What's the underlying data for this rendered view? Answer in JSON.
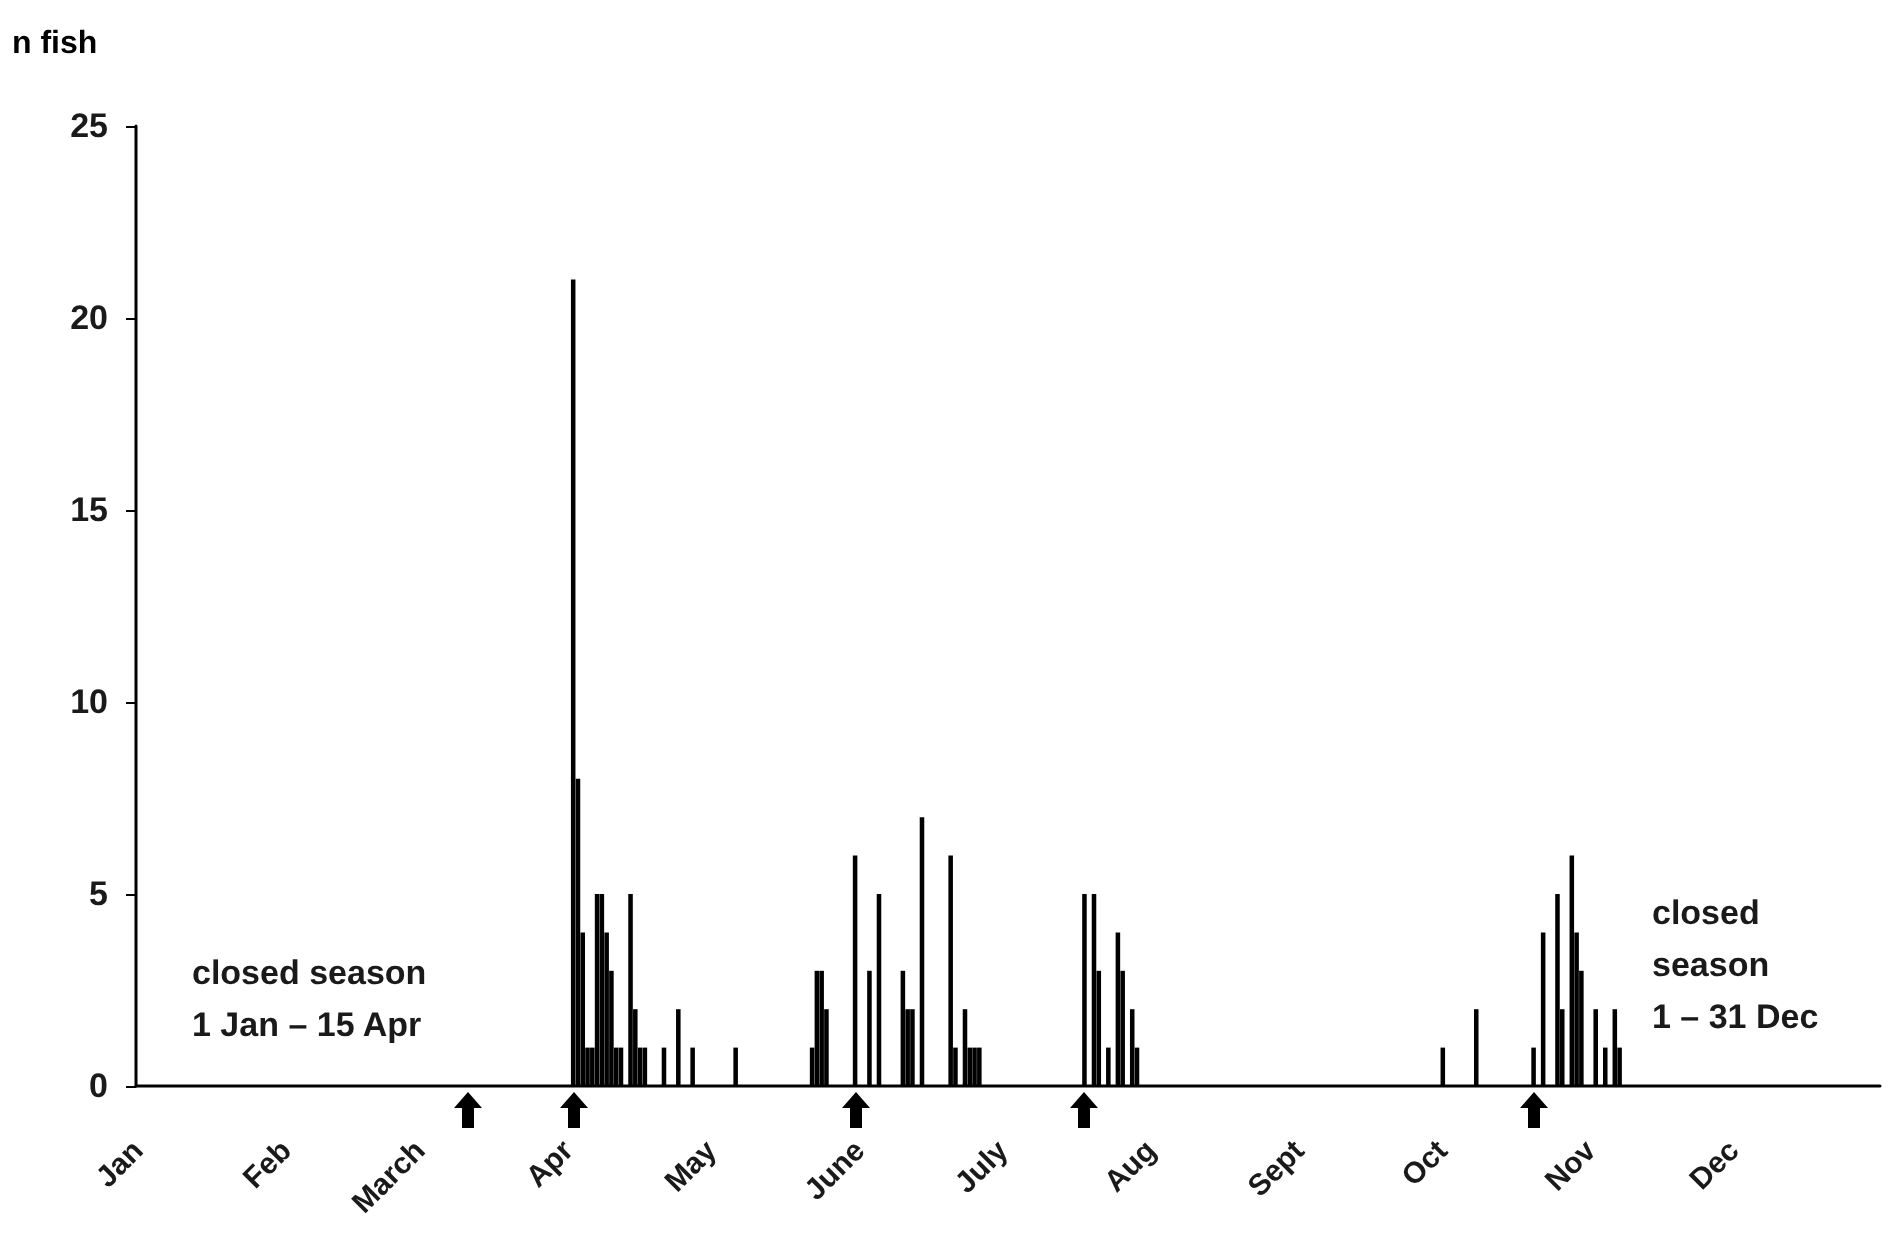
{
  "chart_data": {
    "type": "bar",
    "ylabel": "n fish",
    "color": "#000000",
    "categories": [
      "Jan",
      null,
      null,
      null,
      null,
      null,
      null,
      null,
      null,
      null,
      null,
      null,
      null,
      null,
      null,
      null,
      null,
      null,
      null,
      null,
      null,
      null,
      null,
      null,
      null,
      null,
      null,
      null,
      null,
      null,
      null,
      "Feb",
      null,
      null,
      null,
      null,
      null,
      null,
      null,
      null,
      null,
      null,
      null,
      null,
      null,
      null,
      null,
      null,
      null,
      null,
      null,
      null,
      null,
      null,
      null,
      null,
      null,
      null,
      null,
      "March",
      null,
      null,
      null,
      null,
      null,
      null,
      null,
      null,
      null,
      null,
      null,
      null,
      null,
      null,
      null,
      null,
      null,
      null,
      null,
      null,
      null,
      null,
      null,
      null,
      null,
      null,
      null,
      null,
      null,
      null,
      "Apr",
      null,
      null,
      null,
      null,
      null,
      null,
      null,
      null,
      null,
      null,
      null,
      null,
      null,
      null,
      null,
      null,
      null,
      null,
      null,
      null,
      null,
      null,
      null,
      null,
      null,
      null,
      null,
      null,
      null,
      "May",
      null,
      null,
      null,
      null,
      null,
      null,
      null,
      null,
      null,
      null,
      null,
      null,
      null,
      null,
      null,
      null,
      null,
      null,
      null,
      null,
      null,
      null,
      null,
      null,
      null,
      null,
      null,
      null,
      null,
      null,
      "June",
      null,
      null,
      null,
      null,
      null,
      null,
      null,
      null,
      null,
      null,
      null,
      null,
      null,
      null,
      null,
      null,
      null,
      null,
      null,
      null,
      null,
      null,
      null,
      null,
      null,
      null,
      null,
      null,
      null,
      "July",
      null,
      null,
      null,
      null,
      null,
      null,
      null,
      null,
      null,
      null,
      null,
      null,
      null,
      null,
      null,
      null,
      null,
      null,
      null,
      null,
      null,
      null,
      null,
      null,
      null,
      null,
      null,
      null,
      null,
      null,
      "Aug",
      null,
      null,
      null,
      null,
      null,
      null,
      null,
      null,
      null,
      null,
      null,
      null,
      null,
      null,
      null,
      null,
      null,
      null,
      null,
      null,
      null,
      null,
      null,
      null,
      null,
      null,
      null,
      null,
      null,
      null,
      "Sept",
      null,
      null,
      null,
      null,
      null,
      null,
      null,
      null,
      null,
      null,
      null,
      null,
      null,
      null,
      null,
      null,
      null,
      null,
      null,
      null,
      null,
      null,
      null,
      null,
      null,
      null,
      null,
      null,
      null,
      "Oct",
      null,
      null,
      null,
      null,
      null,
      null,
      null,
      null,
      null,
      null,
      null,
      null,
      null,
      null,
      null,
      null,
      null,
      null,
      null,
      null,
      null,
      null,
      null,
      null,
      null,
      null,
      null,
      null,
      null,
      null,
      "Nov",
      null,
      null,
      null,
      null,
      null,
      null,
      null,
      null,
      null,
      null,
      null,
      null,
      null,
      null,
      null,
      null,
      null,
      null,
      null,
      null,
      null,
      null,
      null,
      null,
      null,
      null,
      null,
      null,
      null,
      "Dec",
      null,
      null,
      null,
      null,
      null,
      null,
      null,
      null,
      null,
      null,
      null,
      null,
      null,
      null,
      null,
      null,
      null,
      null,
      null,
      null,
      null,
      null,
      null,
      null,
      null,
      null,
      null,
      null,
      null,
      null
    ],
    "values": [
      0,
      0,
      0,
      0,
      0,
      0,
      0,
      0,
      0,
      0,
      0,
      0,
      0,
      0,
      0,
      0,
      0,
      0,
      0,
      0,
      0,
      0,
      0,
      0,
      0,
      0,
      0,
      0,
      0,
      0,
      0,
      0,
      0,
      0,
      0,
      0,
      0,
      0,
      0,
      0,
      0,
      0,
      0,
      0,
      0,
      0,
      0,
      0,
      0,
      0,
      0,
      0,
      0,
      0,
      0,
      0,
      0,
      0,
      0,
      0,
      0,
      0,
      0,
      0,
      0,
      0,
      0,
      0,
      0,
      0,
      0,
      0,
      0,
      0,
      0,
      0,
      0,
      0,
      0,
      0,
      0,
      0,
      0,
      0,
      0,
      0,
      0,
      0,
      0,
      0,
      0,
      21,
      8,
      4,
      1,
      1,
      5,
      5,
      4,
      3,
      1,
      1,
      0,
      5,
      2,
      1,
      1,
      0,
      0,
      0,
      1,
      0,
      0,
      2,
      0,
      0,
      1,
      0,
      0,
      0,
      0,
      0,
      0,
      0,
      0,
      1,
      0,
      0,
      0,
      0,
      0,
      0,
      0,
      0,
      0,
      0,
      0,
      0,
      0,
      0,
      0,
      1,
      3,
      3,
      2,
      0,
      0,
      0,
      0,
      0,
      6,
      0,
      0,
      3,
      0,
      5,
      0,
      0,
      0,
      0,
      3,
      2,
      2,
      0,
      7,
      0,
      0,
      0,
      0,
      0,
      6,
      1,
      0,
      2,
      1,
      1,
      1,
      0,
      0,
      0,
      0,
      0,
      0,
      0,
      0,
      0,
      0,
      0,
      0,
      0,
      0,
      0,
      0,
      0,
      0,
      0,
      0,
      0,
      5,
      0,
      5,
      3,
      0,
      1,
      0,
      4,
      3,
      0,
      2,
      1,
      0,
      0,
      0,
      0,
      0,
      0,
      0,
      0,
      0,
      0,
      0,
      0,
      0,
      0,
      0,
      0,
      0,
      0,
      0,
      0,
      0,
      0,
      0,
      0,
      0,
      0,
      0,
      0,
      0,
      0,
      0,
      0,
      0,
      0,
      0,
      0,
      0,
      0,
      0,
      0,
      0,
      0,
      0,
      0,
      0,
      0,
      0,
      0,
      0,
      0,
      0,
      0,
      0,
      0,
      0,
      0,
      0,
      0,
      0,
      0,
      0,
      0,
      0,
      1,
      0,
      0,
      0,
      0,
      0,
      0,
      2,
      0,
      0,
      0,
      0,
      0,
      0,
      0,
      0,
      0,
      0,
      0,
      1,
      0,
      4,
      0,
      0,
      5,
      2,
      0,
      6,
      4,
      3,
      0,
      0,
      2,
      0,
      1,
      0,
      2,
      1,
      0,
      0,
      0,
      0,
      0,
      0,
      0,
      0,
      0,
      0,
      0,
      0,
      0,
      0,
      0,
      0,
      0,
      0,
      0,
      0,
      0,
      0,
      0,
      0,
      0,
      0,
      0,
      0,
      0,
      0,
      0,
      0,
      0,
      0,
      0,
      0,
      0,
      0,
      0,
      0,
      0,
      0,
      0,
      0,
      0,
      0,
      0,
      0,
      0,
      0,
      0,
      0,
      0,
      0
    ],
    "ylim": [
      0,
      25
    ],
    "yticks": [
      0,
      5,
      10,
      15,
      20,
      25
    ],
    "grid": false,
    "annotations": [
      "closed season\n1 Jan – 15 Apr",
      "closed\nseason\n1 – 31 Dec"
    ]
  }
}
